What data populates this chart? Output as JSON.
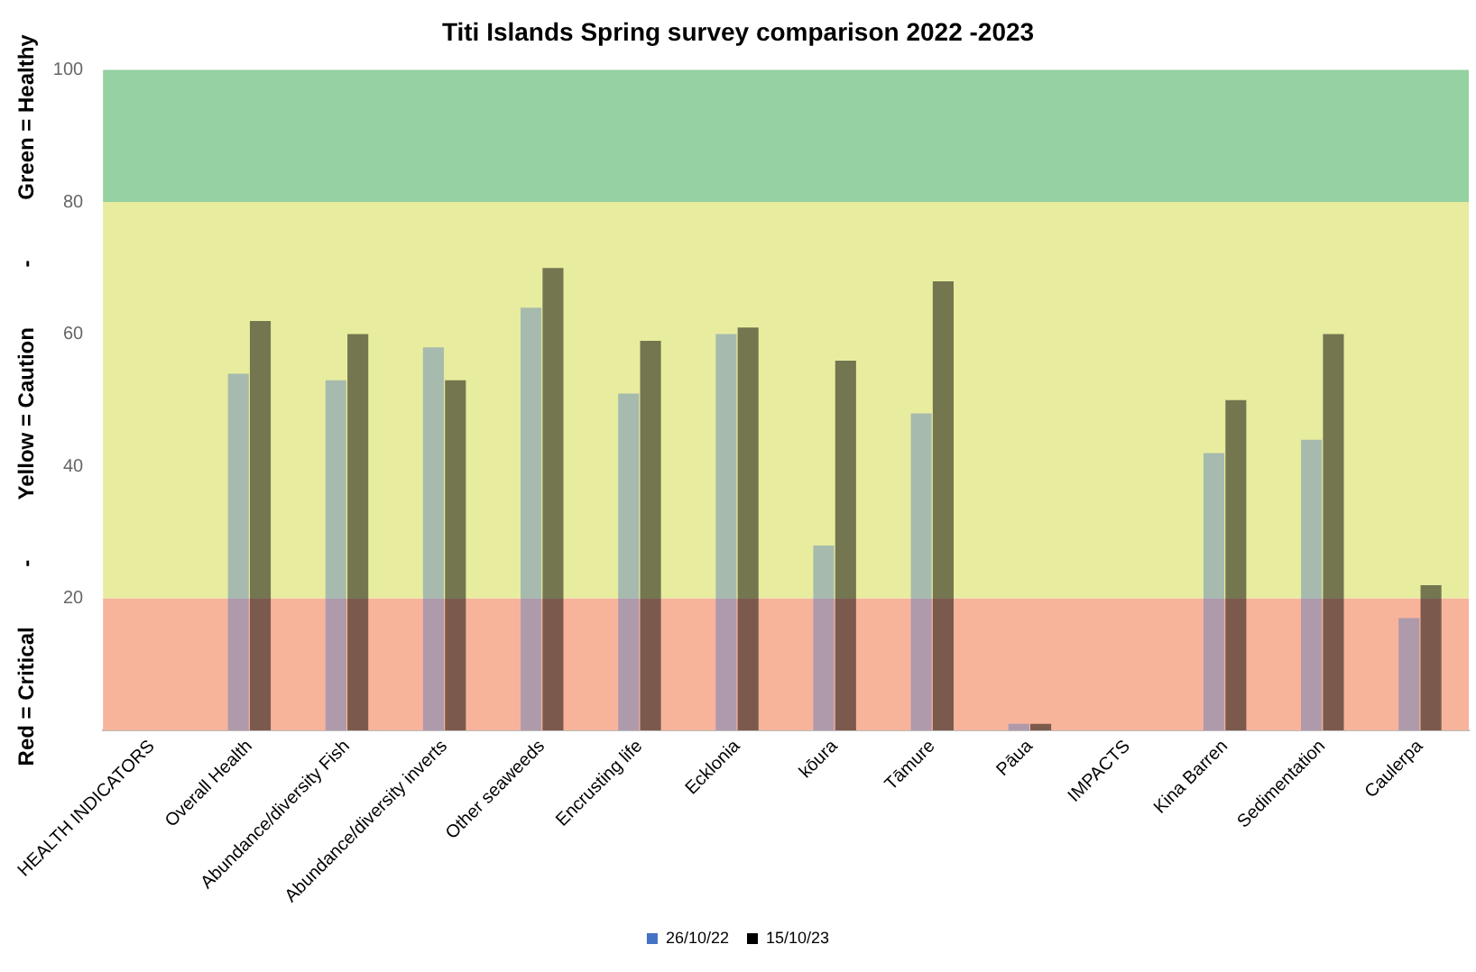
{
  "chart_data": {
    "type": "bar",
    "title": "Titi Islands Spring survey comparison 2022 -2023",
    "ylabel": "Red = Critical          -          Yellow = Caution          -          Green = Healthy",
    "categories": [
      "HEALTH INDICATORS",
      "Overall Health",
      "Abundance/diversity Fish",
      "Abundance/diversity inverts",
      "Other seaweeds",
      "Encrusting life",
      "Ecklonia",
      "kōura",
      "Tāmure",
      "Pāua",
      "IMPACTS",
      "Kina Barren",
      "Sedimentation",
      "Caulerpa"
    ],
    "series": [
      {
        "name": "26/10/22",
        "color": "#4472c4",
        "values": [
          null,
          54,
          53,
          58,
          64,
          51,
          60,
          28,
          48,
          1,
          null,
          42,
          44,
          17
        ]
      },
      {
        "name": "15/10/23",
        "color": "#000000",
        "values": [
          null,
          62,
          60,
          53,
          70,
          59,
          61,
          56,
          68,
          1,
          null,
          50,
          60,
          22
        ]
      }
    ],
    "ylim": [
      0,
      100
    ],
    "yticks": [
      20,
      40,
      60,
      80,
      100
    ],
    "bands": [
      {
        "axis": "y",
        "from": 0,
        "to": 20,
        "color": "#f7b49b"
      },
      {
        "axis": "y",
        "from": 20,
        "to": 80,
        "color": "#e8ec9f"
      },
      {
        "axis": "y",
        "from": 80,
        "to": 100,
        "color": "#96d1a1"
      }
    ],
    "grid": false,
    "legend": "bottom"
  }
}
